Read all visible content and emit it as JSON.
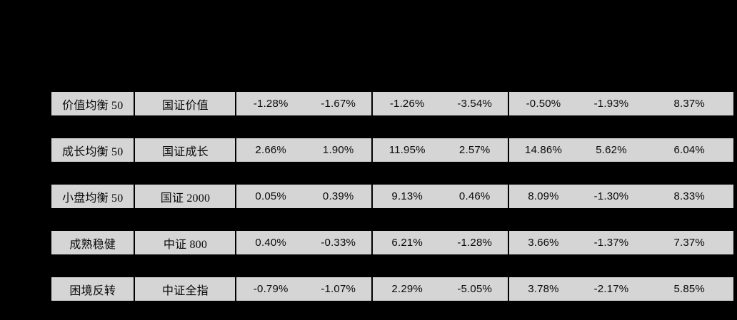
{
  "colors": {
    "page_bg": "#000000",
    "row_bg": "#d5d5d5",
    "border": "#000000",
    "text": "#0a0a0a"
  },
  "table": {
    "rows": [
      {
        "name": "价值均衡 50",
        "index": "国证价值",
        "values": [
          "-1.28%",
          "-1.67%",
          "-1.26%",
          "-3.54%",
          "-0.50%",
          "-1.93%",
          "8.37%"
        ]
      },
      {
        "name": "成长均衡 50",
        "index": "国证成长",
        "values": [
          "2.66%",
          "1.90%",
          "11.95%",
          "2.57%",
          "14.86%",
          "5.62%",
          "6.04%"
        ]
      },
      {
        "name": "小盘均衡 50",
        "index": "国证 2000",
        "values": [
          "0.05%",
          "0.39%",
          "9.13%",
          "0.46%",
          "8.09%",
          "-1.30%",
          "8.33%"
        ]
      },
      {
        "name": "成熟稳健",
        "index": "中证 800",
        "values": [
          "0.40%",
          "-0.33%",
          "6.21%",
          "-1.28%",
          "3.66%",
          "-1.37%",
          "7.37%"
        ]
      },
      {
        "name": "困境反转",
        "index": "中证全指",
        "values": [
          "-0.79%",
          "-1.07%",
          "2.29%",
          "-5.05%",
          "3.78%",
          "-2.17%",
          "5.85%"
        ]
      }
    ]
  },
  "chart_data": {
    "type": "table",
    "columns": [
      "portfolio",
      "benchmark_index",
      "v1",
      "v2",
      "v3",
      "v4",
      "v5",
      "v6",
      "v7"
    ],
    "rows": [
      [
        "价值均衡 50",
        "国证价值",
        "-1.28%",
        "-1.67%",
        "-1.26%",
        "-3.54%",
        "-0.50%",
        "-1.93%",
        "8.37%"
      ],
      [
        "成长均衡 50",
        "国证成长",
        "2.66%",
        "1.90%",
        "11.95%",
        "2.57%",
        "14.86%",
        "5.62%",
        "6.04%"
      ],
      [
        "小盘均衡 50",
        "国证 2000",
        "0.05%",
        "0.39%",
        "9.13%",
        "0.46%",
        "8.09%",
        "-1.30%",
        "8.33%"
      ],
      [
        "成熟稳健",
        "中证 800",
        "0.40%",
        "-0.33%",
        "6.21%",
        "-1.28%",
        "3.66%",
        "-1.37%",
        "7.37%"
      ],
      [
        "困境反转",
        "中证全指",
        "-0.79%",
        "-1.07%",
        "2.29%",
        "-5.05%",
        "3.78%",
        "-2.17%",
        "5.85%"
      ]
    ]
  }
}
